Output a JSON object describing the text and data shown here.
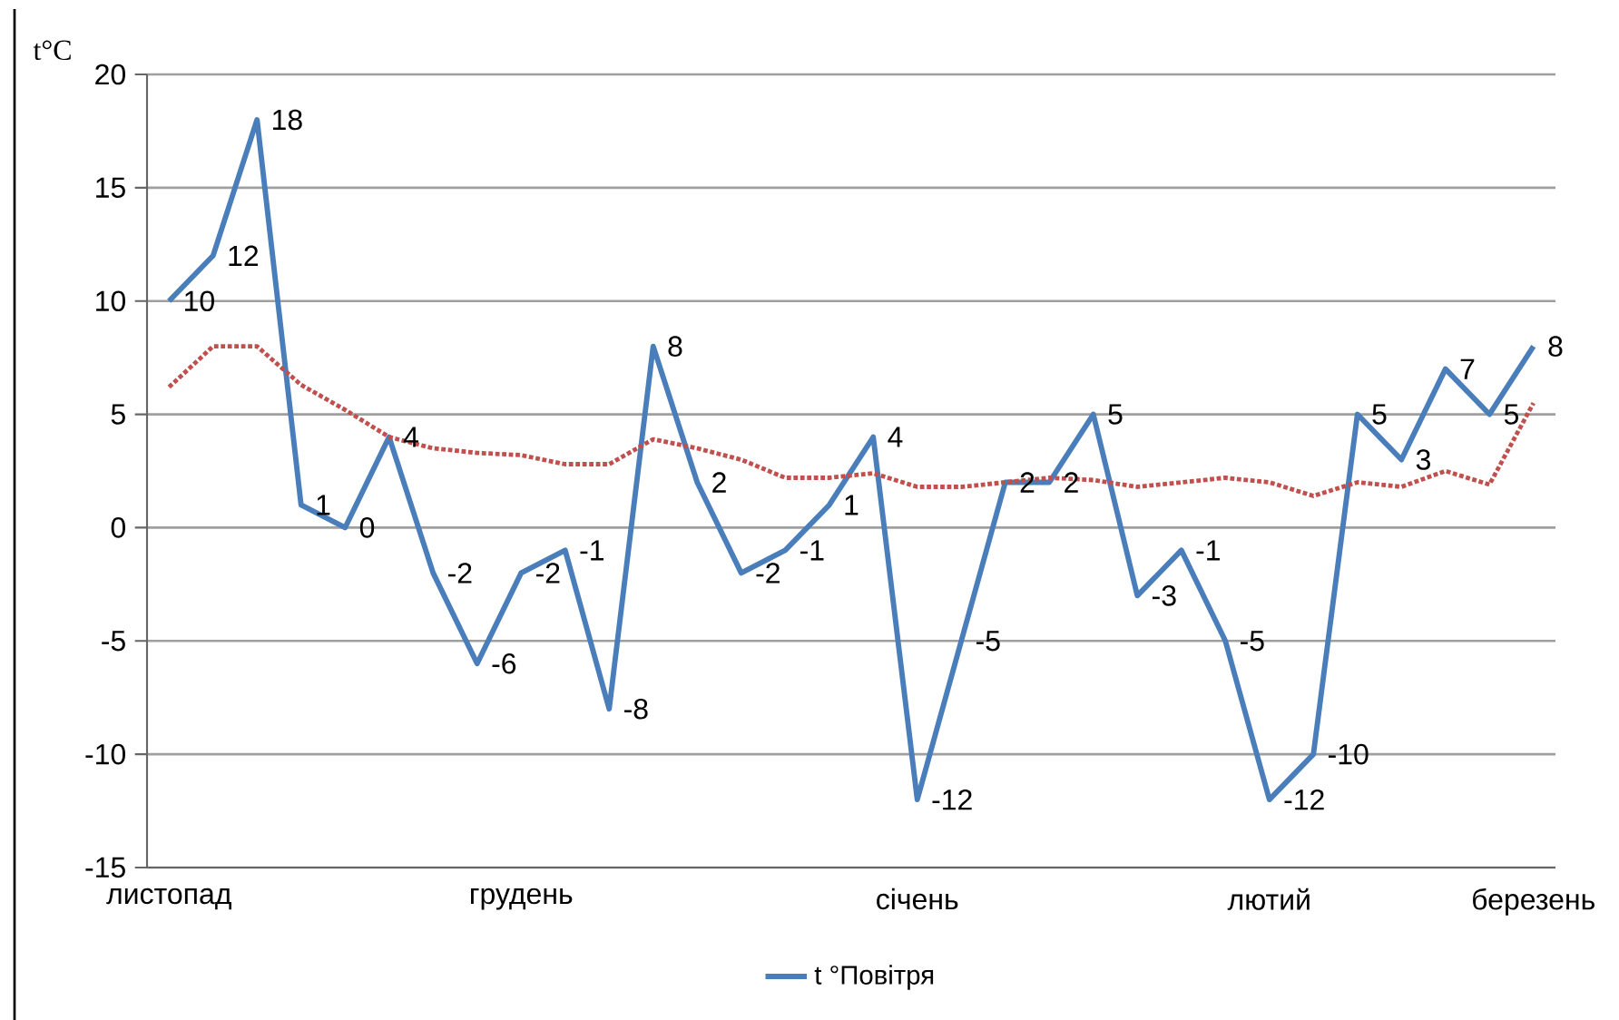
{
  "chart_data": {
    "type": "line",
    "ylabel": "t°C",
    "categories": [
      "листопад",
      null,
      null,
      null,
      null,
      null,
      null,
      null,
      "грудень",
      null,
      null,
      null,
      null,
      null,
      null,
      null,
      null,
      "січень",
      null,
      null,
      null,
      null,
      null,
      null,
      null,
      "лютий",
      null,
      null,
      null,
      null,
      null,
      "березень"
    ],
    "series": [
      {
        "name": "t °Повітря",
        "color": "#4a7ebb",
        "line_style": "solid",
        "data_labels": true,
        "values": [
          10,
          12,
          18,
          1,
          0,
          4,
          -2,
          -6,
          -2,
          -1,
          -8,
          8,
          2,
          -2,
          -1,
          1,
          4,
          -12,
          -5,
          2,
          2,
          5,
          -3,
          -1,
          -5,
          -12,
          -10,
          5,
          3,
          7,
          5,
          8
        ]
      },
      {
        "color": "#c0504d",
        "line_style": "dotted",
        "values": [
          6.2,
          8,
          8,
          6.3,
          5.2,
          4,
          3.5,
          3.3,
          3.2,
          2.8,
          2.8,
          3.9,
          3.5,
          3.0,
          2.2,
          2.2,
          2.4,
          1.8,
          1.8,
          2.0,
          2.2,
          2.1,
          1.8,
          2.0,
          2.2,
          2.0,
          1.4,
          2.0,
          1.8,
          2.5,
          1.9,
          5.5
        ]
      }
    ],
    "ylim": [
      -15,
      20
    ],
    "yticks": [
      -15,
      -10,
      -5,
      0,
      5,
      10,
      15,
      20
    ],
    "grid": "y",
    "legend": "bottom"
  }
}
